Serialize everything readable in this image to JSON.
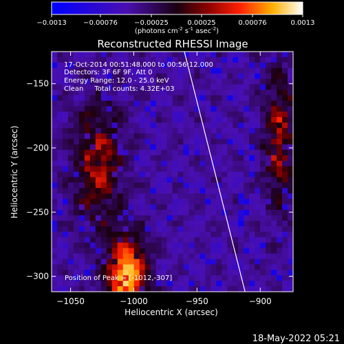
{
  "colorbar": {
    "ticks": [
      "-0.0013",
      "-0.00076",
      "-0.00025",
      "0.00025",
      "0.00076",
      "0.0013"
    ],
    "units_label": "(photons cm",
    "units_exp1": "-2",
    "units_mid": " s",
    "units_exp2": "-1",
    "units_mid2": " asec",
    "units_exp3": "-2",
    "units_end": ")"
  },
  "header": {
    "time_range": "17-Oct-2014 00:51:48.000 to 00:56:12.000",
    "detectors": "Detectors: 3F 6F 9F, Att 0",
    "energy": "Energy Range: 12.0 - 25.0 keV",
    "clean": "Clean     Total counts: 4.32E+03",
    "peak": "Position of Peak = [-1012,-307]"
  },
  "footer": {
    "timestamp": "18-May-2022 05:21"
  },
  "chart_data": {
    "type": "heatmap",
    "title": "Reconstructed RHESSI Image",
    "xlabel": "Heliocentric X (arcsec)",
    "ylabel": "Heliocentric Y (arcsec)",
    "xlim": [
      -1065,
      -874
    ],
    "ylim": [
      -312,
      -125
    ],
    "x_ticks": [
      -1050,
      -1000,
      -950,
      -900
    ],
    "x_tick_labels": [
      "−1050",
      "−1000",
      "−950",
      "−900"
    ],
    "y_ticks": [
      -150,
      -200,
      -250,
      -300
    ],
    "y_tick_labels": [
      "−150",
      "−200",
      "−250",
      "−300"
    ],
    "clim": [
      -0.0013,
      0.0013
    ],
    "peak": {
      "x": -1012,
      "y": -307
    },
    "limb_line": [
      [
        -960,
        -125
      ],
      [
        -912,
        -312
      ]
    ],
    "colors": {
      "frame": "#ffffff",
      "background": "#000000",
      "limb": "#ffffff"
    }
  }
}
